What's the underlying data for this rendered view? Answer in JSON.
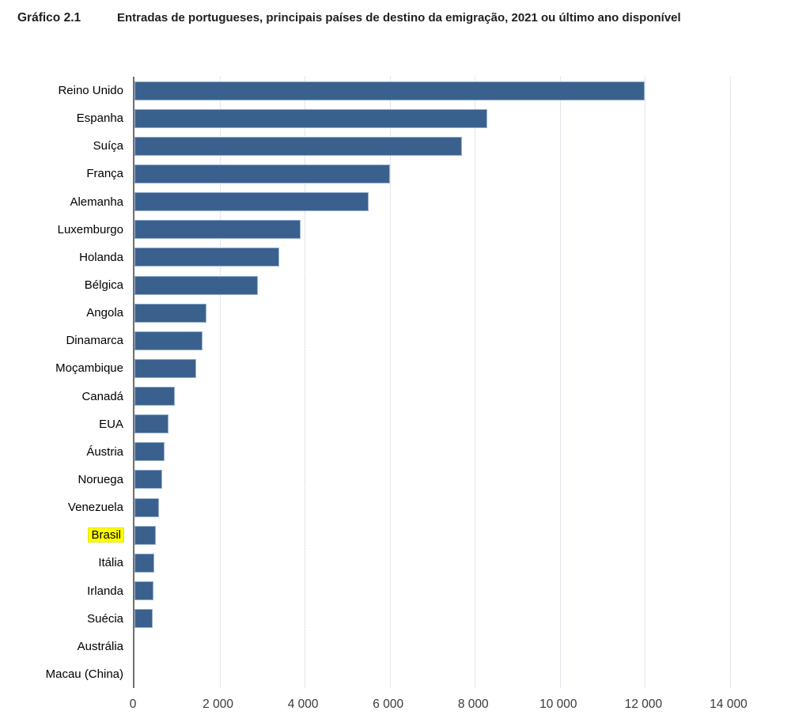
{
  "header": {
    "label": "Gráfico 2.1",
    "title": "Entradas de portugueses, principais países de destino da emigração, 2021 ou último ano disponível"
  },
  "chart_data": {
    "type": "bar",
    "orientation": "horizontal",
    "title": "Entradas de portugueses, principais países de destino da emigração, 2021 ou último ano disponível",
    "categories": [
      "Reino Unido",
      "Espanha",
      "Suíça",
      "França",
      "Alemanha",
      "Luxemburgo",
      "Holanda",
      "Bélgica",
      "Angola",
      "Dinamarca",
      "Moçambique",
      "Canadá",
      "EUA",
      "Áustria",
      "Noruega",
      "Venezuela",
      "Brasil",
      "Itália",
      "Irlanda",
      "Suécia",
      "Austrália",
      "Macau (China)"
    ],
    "values": [
      12000,
      8300,
      7700,
      6000,
      5500,
      3900,
      3400,
      2900,
      1700,
      1600,
      1450,
      950,
      800,
      700,
      650,
      570,
      500,
      460,
      450,
      430,
      0,
      0
    ],
    "highlighted_category": "Brasil",
    "highlight_color": "#ffff00",
    "bar_color": "#3a618e",
    "bar_border_color": "#94afd0",
    "axis_color": "#6f6f6f",
    "gridline_color": "#c4cedd",
    "grid": "vertical-dotted",
    "legend": "none",
    "xlabel": "",
    "ylabel": "",
    "xlim": [
      0,
      14000
    ],
    "xticks": [
      0,
      2000,
      4000,
      6000,
      8000,
      10000,
      12000,
      14000
    ],
    "xtick_labels": [
      "0",
      "2 000",
      "4 000",
      "6 000",
      "8 000",
      "10 000",
      "12 000",
      "14 000"
    ]
  }
}
